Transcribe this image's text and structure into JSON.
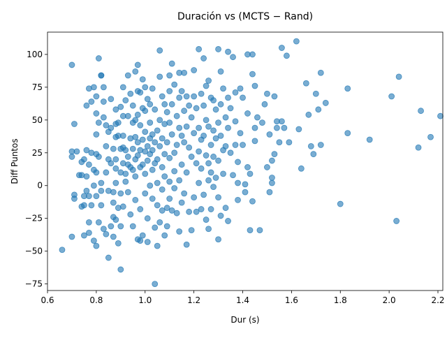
{
  "chart_data": {
    "type": "scatter",
    "title": "Duración vs (MCTS − Rand)",
    "xlabel": "Dur (s)",
    "ylabel": "Diff Puntos",
    "xlim": [
      0.6,
      2.22
    ],
    "ylim": [
      -80,
      117
    ],
    "xticks": [
      0.6,
      0.8,
      1.0,
      1.2,
      1.4,
      1.6,
      1.8,
      2.0,
      2.2
    ],
    "xtick_labels": [
      "0.6",
      "0.8",
      "1.0",
      "1.2",
      "1.4",
      "1.6",
      "1.8",
      "2.0",
      "2.2"
    ],
    "yticks": [
      -75,
      -50,
      -25,
      0,
      25,
      50,
      75,
      100
    ],
    "ytick_labels": [
      "−75",
      "−50",
      "−25",
      "0",
      "25",
      "50",
      "75",
      "100"
    ],
    "grid": false,
    "legend": "none",
    "marker_color": "#1f77b4",
    "points": [
      [
        0.66,
        -49
      ],
      [
        0.7,
        92
      ],
      [
        0.7,
        22
      ],
      [
        0.7,
        26
      ],
      [
        0.7,
        -39
      ],
      [
        0.71,
        47
      ],
      [
        0.71,
        -7
      ],
      [
        0.71,
        -10
      ],
      [
        0.72,
        26
      ],
      [
        0.73,
        8
      ],
      [
        0.74,
        -16
      ],
      [
        0.74,
        8
      ],
      [
        0.74,
        18
      ],
      [
        0.75,
        -38
      ],
      [
        0.75,
        -8
      ],
      [
        0.75,
        -15
      ],
      [
        0.75,
        20
      ],
      [
        0.76,
        61
      ],
      [
        0.76,
        27
      ],
      [
        0.76,
        7
      ],
      [
        0.76,
        -4
      ],
      [
        0.77,
        74
      ],
      [
        0.77,
        16
      ],
      [
        0.77,
        -8
      ],
      [
        0.77,
        -28
      ],
      [
        0.77,
        -36
      ],
      [
        0.78,
        25
      ],
      [
        0.78,
        -15
      ],
      [
        0.78,
        64
      ],
      [
        0.79,
        75
      ],
      [
        0.79,
        12
      ],
      [
        0.79,
        0
      ],
      [
        0.79,
        -42
      ],
      [
        0.8,
        -46
      ],
      [
        0.8,
        55
      ],
      [
        0.8,
        68
      ],
      [
        0.8,
        39
      ],
      [
        0.8,
        24
      ],
      [
        0.8,
        10
      ],
      [
        0.8,
        -8
      ],
      [
        0.81,
        97
      ],
      [
        0.81,
        -28
      ],
      [
        0.81,
        48
      ],
      [
        0.81,
        22
      ],
      [
        0.82,
        84
      ],
      [
        0.82,
        84
      ],
      [
        0.82,
        2
      ],
      [
        0.82,
        -15
      ],
      [
        0.82,
        -4
      ],
      [
        0.83,
        75
      ],
      [
        0.83,
        64
      ],
      [
        0.83,
        52
      ],
      [
        0.83,
        -33
      ],
      [
        0.84,
        46
      ],
      [
        0.84,
        30
      ],
      [
        0.84,
        10
      ],
      [
        0.84,
        -37
      ],
      [
        0.85,
        -4
      ],
      [
        0.85,
        20
      ],
      [
        0.85,
        41
      ],
      [
        0.85,
        -55
      ],
      [
        0.86,
        66
      ],
      [
        0.86,
        44
      ],
      [
        0.86,
        -31
      ],
      [
        0.86,
        17
      ],
      [
        0.87,
        -39
      ],
      [
        0.87,
        -24
      ],
      [
        0.87,
        -13
      ],
      [
        0.87,
        -5
      ],
      [
        0.87,
        28
      ],
      [
        0.88,
        58
      ],
      [
        0.88,
        37
      ],
      [
        0.88,
        47
      ],
      [
        0.88,
        20
      ],
      [
        0.88,
        13
      ],
      [
        0.88,
        2
      ],
      [
        0.88,
        -26
      ],
      [
        0.89,
        48
      ],
      [
        0.89,
        38
      ],
      [
        0.89,
        -44
      ],
      [
        0.89,
        -17
      ],
      [
        0.9,
        -64
      ],
      [
        0.9,
        60
      ],
      [
        0.9,
        28
      ],
      [
        0.9,
        10
      ],
      [
        0.9,
        -6
      ],
      [
        0.9,
        -31
      ],
      [
        0.91,
        75
      ],
      [
        0.91,
        53
      ],
      [
        0.91,
        38
      ],
      [
        0.91,
        29
      ],
      [
        0.91,
        17
      ],
      [
        0.91,
        -16
      ],
      [
        0.92,
        65
      ],
      [
        0.92,
        27
      ],
      [
        0.92,
        9
      ],
      [
        0.92,
        3
      ],
      [
        0.93,
        84
      ],
      [
        0.93,
        53
      ],
      [
        0.93,
        22
      ],
      [
        0.93,
        16
      ],
      [
        0.93,
        -5
      ],
      [
        0.94,
        70
      ],
      [
        0.94,
        36
      ],
      [
        0.94,
        14
      ],
      [
        0.94,
        -22
      ],
      [
        0.95,
        48
      ],
      [
        0.95,
        61
      ],
      [
        0.95,
        28
      ],
      [
        0.95,
        12
      ],
      [
        0.95,
        -31
      ],
      [
        0.96,
        87
      ],
      [
        0.96,
        50
      ],
      [
        0.96,
        37
      ],
      [
        0.96,
        20
      ],
      [
        0.96,
        7
      ],
      [
        0.96,
        -11
      ],
      [
        0.97,
        92
      ],
      [
        0.97,
        72
      ],
      [
        0.97,
        54
      ],
      [
        0.97,
        33
      ],
      [
        0.97,
        23
      ],
      [
        0.97,
        -41
      ],
      [
        0.98,
        71
      ],
      [
        0.98,
        46
      ],
      [
        0.98,
        27
      ],
      [
        0.98,
        14
      ],
      [
        0.98,
        -18
      ],
      [
        0.98,
        -42
      ],
      [
        0.99,
        81
      ],
      [
        0.99,
        59
      ],
      [
        0.99,
        35
      ],
      [
        0.99,
        16
      ],
      [
        0.99,
        -38
      ],
      [
        1.0,
        75
      ],
      [
        1.0,
        57
      ],
      [
        1.0,
        41
      ],
      [
        1.0,
        26
      ],
      [
        1.0,
        9
      ],
      [
        1.0,
        -6
      ],
      [
        1.01,
        66
      ],
      [
        1.01,
        30
      ],
      [
        1.01,
        19
      ],
      [
        1.01,
        -25
      ],
      [
        1.01,
        -43
      ],
      [
        1.02,
        62
      ],
      [
        1.02,
        48
      ],
      [
        1.02,
        36
      ],
      [
        1.02,
        24
      ],
      [
        1.02,
        0
      ],
      [
        1.03,
        74
      ],
      [
        1.03,
        39
      ],
      [
        1.03,
        27
      ],
      [
        1.03,
        12
      ],
      [
        1.03,
        -10
      ],
      [
        1.04,
        -75
      ],
      [
        1.04,
        58
      ],
      [
        1.04,
        33
      ],
      [
        1.04,
        17
      ],
      [
        1.04,
        -32
      ],
      [
        1.05,
        -46
      ],
      [
        1.05,
        42
      ],
      [
        1.05,
        20
      ],
      [
        1.05,
        2
      ],
      [
        1.05,
        -15
      ],
      [
        1.06,
        103
      ],
      [
        1.06,
        83
      ],
      [
        1.06,
        50
      ],
      [
        1.06,
        30
      ],
      [
        1.06,
        -28
      ],
      [
        1.07,
        68
      ],
      [
        1.07,
        36
      ],
      [
        1.07,
        14
      ],
      [
        1.07,
        -3
      ],
      [
        1.07,
        -19
      ],
      [
        1.08,
        -38
      ],
      [
        1.08,
        62
      ],
      [
        1.08,
        47
      ],
      [
        1.08,
        24
      ],
      [
        1.08,
        7
      ],
      [
        1.09,
        56
      ],
      [
        1.09,
        33
      ],
      [
        1.09,
        -17
      ],
      [
        1.09,
        -31
      ],
      [
        1.1,
        84
      ],
      [
        1.1,
        72
      ],
      [
        1.1,
        48
      ],
      [
        1.1,
        21
      ],
      [
        1.1,
        3
      ],
      [
        1.1,
        -10
      ],
      [
        1.11,
        93
      ],
      [
        1.11,
        62
      ],
      [
        1.11,
        39
      ],
      [
        1.11,
        -19
      ],
      [
        1.12,
        77
      ],
      [
        1.12,
        25
      ],
      [
        1.12,
        11
      ],
      [
        1.12,
        -2
      ],
      [
        1.13,
        53
      ],
      [
        1.13,
        31
      ],
      [
        1.13,
        -21
      ],
      [
        1.14,
        86
      ],
      [
        1.14,
        67
      ],
      [
        1.14,
        44
      ],
      [
        1.14,
        4
      ],
      [
        1.14,
        -35
      ],
      [
        1.15,
        72
      ],
      [
        1.15,
        38
      ],
      [
        1.15,
        16
      ],
      [
        1.15,
        -13
      ],
      [
        1.16,
        86
      ],
      [
        1.16,
        57
      ],
      [
        1.16,
        33
      ],
      [
        1.16,
        -6
      ],
      [
        1.17,
        -45
      ],
      [
        1.17,
        68
      ],
      [
        1.17,
        45
      ],
      [
        1.17,
        10
      ],
      [
        1.18,
        61
      ],
      [
        1.18,
        29
      ],
      [
        1.18,
        -20
      ],
      [
        1.19,
        -34
      ],
      [
        1.19,
        52
      ],
      [
        1.19,
        22
      ],
      [
        1.2,
        88
      ],
      [
        1.2,
        68
      ],
      [
        1.2,
        40
      ],
      [
        1.2,
        -9
      ],
      [
        1.21,
        59
      ],
      [
        1.21,
        17
      ],
      [
        1.21,
        -20
      ],
      [
        1.22,
        104
      ],
      [
        1.22,
        44
      ],
      [
        1.22,
        26
      ],
      [
        1.22,
        2
      ],
      [
        1.23,
        70
      ],
      [
        1.23,
        35
      ],
      [
        1.23,
        13
      ],
      [
        1.23,
        -18
      ],
      [
        1.24,
        97
      ],
      [
        1.24,
        61
      ],
      [
        1.24,
        38
      ],
      [
        1.24,
        -7
      ],
      [
        1.25,
        76
      ],
      [
        1.25,
        50
      ],
      [
        1.25,
        23
      ],
      [
        1.25,
        -26
      ],
      [
        1.26,
        80
      ],
      [
        1.26,
        45
      ],
      [
        1.26,
        17
      ],
      [
        1.26,
        4
      ],
      [
        1.26,
        -33
      ],
      [
        1.27,
        67
      ],
      [
        1.27,
        31
      ],
      [
        1.27,
        10
      ],
      [
        1.27,
        -18
      ],
      [
        1.28,
        65
      ],
      [
        1.28,
        42
      ],
      [
        1.28,
        22
      ],
      [
        1.28,
        -1
      ],
      [
        1.29,
        58
      ],
      [
        1.29,
        36
      ],
      [
        1.29,
        6
      ],
      [
        1.3,
        104
      ],
      [
        1.3,
        -41
      ],
      [
        1.3,
        48
      ],
      [
        1.3,
        19
      ],
      [
        1.3,
        -9
      ],
      [
        1.31,
        87
      ],
      [
        1.31,
        62
      ],
      [
        1.31,
        38
      ],
      [
        1.31,
        -23
      ],
      [
        1.32,
        74
      ],
      [
        1.32,
        27
      ],
      [
        1.32,
        9
      ],
      [
        1.33,
        -17
      ],
      [
        1.33,
        52
      ],
      [
        1.33,
        30
      ],
      [
        1.34,
        102
      ],
      [
        1.34,
        67
      ],
      [
        1.34,
        44
      ],
      [
        1.34,
        -27
      ],
      [
        1.35,
        59
      ],
      [
        1.35,
        25
      ],
      [
        1.36,
        98
      ],
      [
        1.36,
        8
      ],
      [
        1.37,
        71
      ],
      [
        1.37,
        49
      ],
      [
        1.37,
        31
      ],
      [
        1.38,
        -11
      ],
      [
        1.38,
        18
      ],
      [
        1.38,
        2
      ],
      [
        1.39,
        74
      ],
      [
        1.39,
        40
      ],
      [
        1.4,
        67
      ],
      [
        1.4,
        31
      ],
      [
        1.41,
        -5
      ],
      [
        1.41,
        1
      ],
      [
        1.42,
        100
      ],
      [
        1.42,
        55
      ],
      [
        1.42,
        14
      ],
      [
        1.43,
        -34
      ],
      [
        1.43,
        9
      ],
      [
        1.44,
        100
      ],
      [
        1.44,
        85
      ],
      [
        1.44,
        -12
      ],
      [
        1.45,
        76
      ],
      [
        1.45,
        34
      ],
      [
        1.45,
        44
      ],
      [
        1.46,
        52
      ],
      [
        1.47,
        -34
      ],
      [
        1.48,
        48
      ],
      [
        1.49,
        62
      ],
      [
        1.5,
        70
      ],
      [
        1.5,
        14
      ],
      [
        1.51,
        -5
      ],
      [
        1.51,
        39
      ],
      [
        1.52,
        2
      ],
      [
        1.52,
        6
      ],
      [
        1.52,
        19
      ],
      [
        1.53,
        68
      ],
      [
        1.53,
        24
      ],
      [
        1.54,
        49
      ],
      [
        1.54,
        44
      ],
      [
        1.55,
        33
      ],
      [
        1.56,
        105
      ],
      [
        1.56,
        49
      ],
      [
        1.57,
        44
      ],
      [
        1.58,
        99
      ],
      [
        1.59,
        33
      ],
      [
        1.62,
        110
      ],
      [
        1.63,
        43
      ],
      [
        1.64,
        13
      ],
      [
        1.66,
        78
      ],
      [
        1.67,
        54
      ],
      [
        1.68,
        30
      ],
      [
        1.69,
        24
      ],
      [
        1.7,
        70
      ],
      [
        1.71,
        58
      ],
      [
        1.72,
        86
      ],
      [
        1.72,
        31
      ],
      [
        1.74,
        63
      ],
      [
        1.8,
        -14
      ],
      [
        1.83,
        74
      ],
      [
        1.83,
        40
      ],
      [
        1.92,
        35
      ],
      [
        2.01,
        68
      ],
      [
        2.03,
        -27
      ],
      [
        2.04,
        83
      ],
      [
        2.12,
        29
      ],
      [
        2.13,
        57
      ],
      [
        2.17,
        37
      ],
      [
        2.21,
        53
      ]
    ]
  }
}
